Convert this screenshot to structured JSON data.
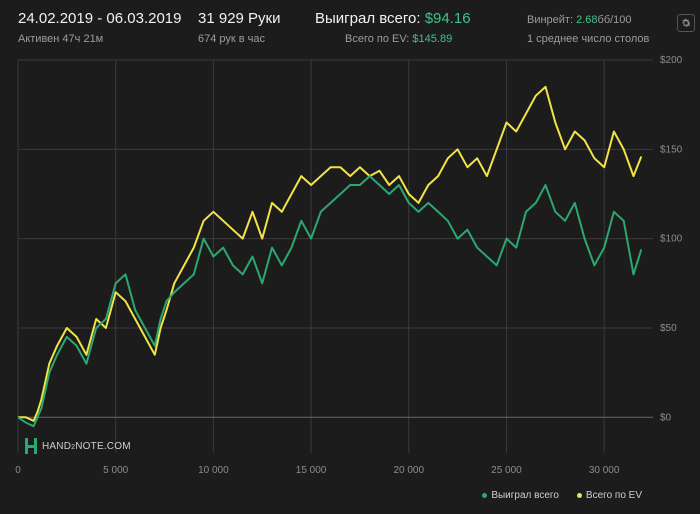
{
  "header": {
    "date_range": "24.02.2019 - 06.03.2019",
    "active": "Активен 47ч 21м",
    "hands": "31 929 Руки",
    "hands_per_hour": "674 рук в час",
    "won_label": "Выиграл всего:",
    "won_value": "$94.16",
    "ev_label": "Всего по EV:",
    "ev_value": "$145.89",
    "winrate_label": "Винрейт:",
    "winrate_value": "2.68",
    "winrate_unit": "бб/100",
    "tables": "1 среднее число столов",
    "settings_icon": "gear-icon"
  },
  "logo": {
    "text_a": "HAND",
    "text_b": "2",
    "text_c": "NOTE.COM"
  },
  "colors": {
    "background": "#1c1c1c",
    "won": "#2ba870",
    "ev": "#f0e446",
    "accent_green": "#3cc48a",
    "grid": "#3a3a3a"
  },
  "legend": {
    "won": "Выиграл всего",
    "ev": "Всего по EV"
  },
  "chart_data": {
    "type": "line",
    "title": "",
    "xlabel": "",
    "ylabel": "",
    "xlim": [
      0,
      32500
    ],
    "ylim": [
      -20,
      200
    ],
    "x_ticks": [
      0,
      5000,
      10000,
      15000,
      20000,
      25000,
      30000
    ],
    "x_tick_labels": [
      "0",
      "5 000",
      "10 000",
      "15 000",
      "20 000",
      "25 000",
      "30 000"
    ],
    "y_ticks": [
      0,
      50,
      100,
      150,
      200
    ],
    "y_tick_labels": [
      "$0",
      "$50",
      "$100",
      "$150",
      "$200"
    ],
    "x": [
      0,
      400,
      800,
      1000,
      1200,
      1400,
      1600,
      2000,
      2500,
      3000,
      3500,
      4000,
      4500,
      5000,
      5500,
      6000,
      6500,
      7000,
      7300,
      7600,
      8000,
      8500,
      9000,
      9500,
      10000,
      10500,
      11000,
      11500,
      12000,
      12500,
      13000,
      13500,
      14000,
      14500,
      15000,
      15500,
      16000,
      16500,
      17000,
      17500,
      18000,
      18500,
      19000,
      19500,
      20000,
      20500,
      21000,
      21500,
      22000,
      22500,
      23000,
      23500,
      24000,
      24500,
      25000,
      25500,
      26000,
      26500,
      27000,
      27500,
      28000,
      28500,
      29000,
      29500,
      30000,
      30500,
      31000,
      31500,
      31900
    ],
    "series": [
      {
        "name": "Выиграл всего",
        "values": [
          0,
          -3,
          -5,
          0,
          5,
          15,
          25,
          35,
          45,
          40,
          30,
          50,
          55,
          75,
          80,
          60,
          50,
          40,
          55,
          65,
          70,
          75,
          80,
          100,
          90,
          95,
          85,
          80,
          90,
          75,
          95,
          85,
          95,
          110,
          100,
          115,
          120,
          125,
          130,
          130,
          135,
          130,
          125,
          130,
          120,
          115,
          120,
          115,
          110,
          100,
          105,
          95,
          90,
          85,
          100,
          95,
          115,
          120,
          130,
          115,
          110,
          120,
          100,
          85,
          95,
          115,
          110,
          80,
          94
        ]
      },
      {
        "name": "Всего по EV",
        "values": [
          0,
          0,
          -2,
          3,
          10,
          20,
          30,
          40,
          50,
          45,
          35,
          55,
          50,
          70,
          65,
          55,
          45,
          35,
          50,
          60,
          75,
          85,
          95,
          110,
          115,
          110,
          105,
          100,
          115,
          100,
          120,
          115,
          125,
          135,
          130,
          135,
          140,
          140,
          135,
          140,
          135,
          138,
          130,
          135,
          125,
          120,
          130,
          135,
          145,
          150,
          140,
          145,
          135,
          150,
          165,
          160,
          170,
          180,
          185,
          165,
          150,
          160,
          155,
          145,
          140,
          160,
          150,
          135,
          146
        ]
      }
    ]
  }
}
